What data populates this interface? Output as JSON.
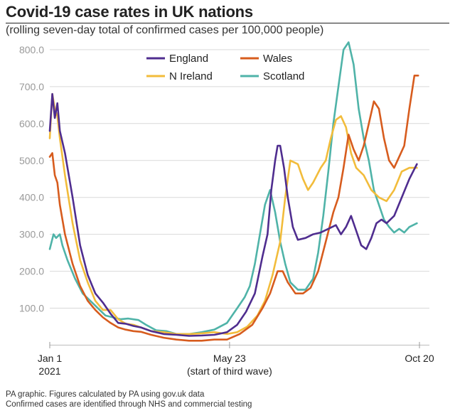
{
  "title": "Covid-19 case rates in UK nations",
  "subtitle": "(rolling seven-day total of confirmed cases per 100,000 people)",
  "footer_lines": [
    "PA graphic. Figures calculated by PA using gov.uk data",
    "Confirmed cases are identified through NHS and commercial testing"
  ],
  "chart_data": {
    "type": "line",
    "title": "Covid-19 case rates in UK nations",
    "subtitle": "(rolling seven-day total of confirmed cases per 100,000 people)",
    "xlabel": "",
    "ylabel": "",
    "x_range_days": [
      0,
      292
    ],
    "ylim": [
      0,
      830
    ],
    "y_ticks": [
      100,
      200,
      300,
      400,
      500,
      600,
      700,
      800
    ],
    "y_tick_labels": [
      "100.0",
      "200.0",
      "300.0",
      "400.0",
      "500.0",
      "600.0",
      "700.0",
      "800.0"
    ],
    "x_ticks": [
      {
        "day": 0,
        "label": "Jan 1",
        "sublabel": "2021"
      },
      {
        "day": 142,
        "label": "May 23",
        "sublabel": "(start of third wave)"
      },
      {
        "day": 292,
        "label": "Oct 20",
        "sublabel": ""
      }
    ],
    "grid": "horizontal",
    "legend_position": "top-center",
    "series": [
      {
        "name": "England",
        "color": "#4f2d8f",
        "points": [
          [
            0,
            580
          ],
          [
            2,
            680
          ],
          [
            4,
            615
          ],
          [
            6,
            655
          ],
          [
            8,
            580
          ],
          [
            12,
            520
          ],
          [
            18,
            400
          ],
          [
            24,
            270
          ],
          [
            30,
            190
          ],
          [
            36,
            140
          ],
          [
            42,
            115
          ],
          [
            48,
            85
          ],
          [
            54,
            60
          ],
          [
            60,
            58
          ],
          [
            66,
            52
          ],
          [
            72,
            48
          ],
          [
            80,
            38
          ],
          [
            90,
            30
          ],
          [
            100,
            28
          ],
          [
            110,
            25
          ],
          [
            120,
            26
          ],
          [
            130,
            28
          ],
          [
            140,
            35
          ],
          [
            148,
            55
          ],
          [
            155,
            90
          ],
          [
            162,
            140
          ],
          [
            168,
            240
          ],
          [
            172,
            300
          ],
          [
            175,
            420
          ],
          [
            178,
            500
          ],
          [
            180,
            540
          ],
          [
            182,
            540
          ],
          [
            185,
            480
          ],
          [
            188,
            400
          ],
          [
            192,
            320
          ],
          [
            196,
            285
          ],
          [
            202,
            290
          ],
          [
            208,
            300
          ],
          [
            214,
            305
          ],
          [
            220,
            315
          ],
          [
            226,
            325
          ],
          [
            230,
            300
          ],
          [
            234,
            320
          ],
          [
            238,
            350
          ],
          [
            242,
            310
          ],
          [
            246,
            270
          ],
          [
            250,
            260
          ],
          [
            254,
            290
          ],
          [
            258,
            330
          ],
          [
            262,
            340
          ],
          [
            266,
            330
          ],
          [
            272,
            350
          ],
          [
            278,
            400
          ],
          [
            284,
            450
          ],
          [
            290,
            490
          ]
        ]
      },
      {
        "name": "Wales",
        "color": "#d75c1e",
        "points": [
          [
            0,
            510
          ],
          [
            2,
            520
          ],
          [
            4,
            460
          ],
          [
            6,
            440
          ],
          [
            8,
            380
          ],
          [
            12,
            300
          ],
          [
            18,
            220
          ],
          [
            24,
            160
          ],
          [
            30,
            120
          ],
          [
            36,
            95
          ],
          [
            42,
            75
          ],
          [
            48,
            60
          ],
          [
            54,
            48
          ],
          [
            60,
            42
          ],
          [
            66,
            38
          ],
          [
            72,
            36
          ],
          [
            80,
            28
          ],
          [
            90,
            20
          ],
          [
            100,
            15
          ],
          [
            110,
            12
          ],
          [
            120,
            12
          ],
          [
            130,
            15
          ],
          [
            140,
            15
          ],
          [
            150,
            30
          ],
          [
            160,
            55
          ],
          [
            168,
            100
          ],
          [
            174,
            140
          ],
          [
            180,
            200
          ],
          [
            184,
            200
          ],
          [
            188,
            170
          ],
          [
            194,
            140
          ],
          [
            200,
            140
          ],
          [
            206,
            155
          ],
          [
            212,
            200
          ],
          [
            218,
            280
          ],
          [
            224,
            360
          ],
          [
            228,
            400
          ],
          [
            232,
            480
          ],
          [
            236,
            570
          ],
          [
            240,
            530
          ],
          [
            244,
            500
          ],
          [
            248,
            540
          ],
          [
            252,
            600
          ],
          [
            256,
            660
          ],
          [
            260,
            640
          ],
          [
            264,
            560
          ],
          [
            268,
            500
          ],
          [
            272,
            480
          ],
          [
            276,
            510
          ],
          [
            280,
            540
          ],
          [
            284,
            640
          ],
          [
            288,
            730
          ],
          [
            291,
            730
          ]
        ]
      },
      {
        "name": "N Ireland",
        "color": "#f2bc3b",
        "points": [
          [
            0,
            560
          ],
          [
            2,
            680
          ],
          [
            4,
            640
          ],
          [
            6,
            620
          ],
          [
            8,
            560
          ],
          [
            12,
            460
          ],
          [
            18,
            330
          ],
          [
            24,
            230
          ],
          [
            30,
            170
          ],
          [
            36,
            120
          ],
          [
            42,
            95
          ],
          [
            48,
            95
          ],
          [
            54,
            70
          ],
          [
            60,
            58
          ],
          [
            66,
            55
          ],
          [
            72,
            48
          ],
          [
            80,
            38
          ],
          [
            90,
            35
          ],
          [
            100,
            30
          ],
          [
            110,
            30
          ],
          [
            120,
            32
          ],
          [
            130,
            35
          ],
          [
            140,
            30
          ],
          [
            148,
            35
          ],
          [
            156,
            50
          ],
          [
            164,
            80
          ],
          [
            170,
            120
          ],
          [
            176,
            190
          ],
          [
            182,
            280
          ],
          [
            186,
            400
          ],
          [
            190,
            500
          ],
          [
            196,
            490
          ],
          [
            200,
            450
          ],
          [
            204,
            420
          ],
          [
            208,
            440
          ],
          [
            214,
            480
          ],
          [
            218,
            500
          ],
          [
            222,
            560
          ],
          [
            226,
            610
          ],
          [
            230,
            620
          ],
          [
            234,
            590
          ],
          [
            238,
            520
          ],
          [
            242,
            480
          ],
          [
            248,
            460
          ],
          [
            254,
            420
          ],
          [
            260,
            400
          ],
          [
            266,
            390
          ],
          [
            272,
            420
          ],
          [
            278,
            470
          ],
          [
            284,
            480
          ],
          [
            290,
            480
          ]
        ]
      },
      {
        "name": "Scotland",
        "color": "#4fb3a8",
        "points": [
          [
            0,
            260
          ],
          [
            3,
            300
          ],
          [
            5,
            290
          ],
          [
            8,
            300
          ],
          [
            10,
            270
          ],
          [
            14,
            230
          ],
          [
            20,
            180
          ],
          [
            26,
            140
          ],
          [
            32,
            120
          ],
          [
            38,
            100
          ],
          [
            44,
            80
          ],
          [
            50,
            75
          ],
          [
            56,
            70
          ],
          [
            62,
            72
          ],
          [
            70,
            68
          ],
          [
            76,
            55
          ],
          [
            84,
            40
          ],
          [
            92,
            38
          ],
          [
            100,
            30
          ],
          [
            110,
            30
          ],
          [
            120,
            35
          ],
          [
            130,
            42
          ],
          [
            140,
            60
          ],
          [
            148,
            100
          ],
          [
            154,
            130
          ],
          [
            158,
            160
          ],
          [
            162,
            220
          ],
          [
            166,
            300
          ],
          [
            170,
            380
          ],
          [
            174,
            420
          ],
          [
            178,
            360
          ],
          [
            182,
            280
          ],
          [
            186,
            220
          ],
          [
            190,
            170
          ],
          [
            196,
            150
          ],
          [
            202,
            150
          ],
          [
            208,
            180
          ],
          [
            212,
            250
          ],
          [
            216,
            350
          ],
          [
            220,
            470
          ],
          [
            224,
            600
          ],
          [
            228,
            700
          ],
          [
            232,
            800
          ],
          [
            236,
            820
          ],
          [
            240,
            760
          ],
          [
            244,
            640
          ],
          [
            248,
            560
          ],
          [
            252,
            500
          ],
          [
            256,
            420
          ],
          [
            260,
            380
          ],
          [
            264,
            340
          ],
          [
            268,
            320
          ],
          [
            272,
            305
          ],
          [
            276,
            315
          ],
          [
            280,
            305
          ],
          [
            284,
            320
          ],
          [
            290,
            330
          ]
        ]
      }
    ]
  }
}
